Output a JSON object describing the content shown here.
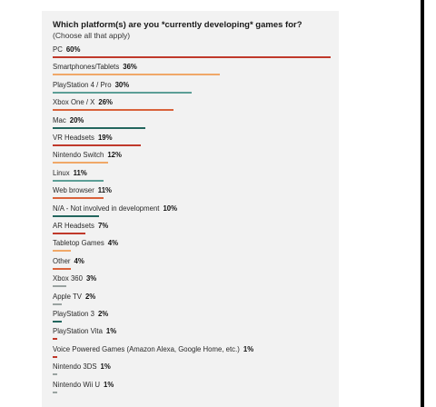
{
  "chart_data": {
    "type": "bar",
    "orientation": "horizontal",
    "title": "Which platform(s) are you *currently developing* games for?",
    "subtitle": "(Choose all that apply)",
    "value_suffix": "%",
    "xlim": [
      0,
      60
    ],
    "grid": false,
    "legend": "none",
    "categories": [
      "PC",
      "Smartphones/Tablets",
      "PlayStation 4 / Pro",
      "Xbox One / X",
      "Mac",
      "VR Headsets",
      "Nintendo Switch",
      "Linux",
      "Web browser",
      "N/A - Not involved in development",
      "AR Headsets",
      "Tabletop Games",
      "Other",
      "Xbox 360",
      "Apple TV",
      "PlayStation 3",
      "PlayStation Vita",
      "Voice Powered Games (Amazon Alexa, Google Home, etc.)",
      "Nintendo 3DS",
      "Nintendo Wii U"
    ],
    "values": [
      60,
      36,
      30,
      26,
      20,
      19,
      12,
      11,
      11,
      10,
      7,
      4,
      4,
      3,
      2,
      2,
      1,
      1,
      1,
      1
    ],
    "value_labels": [
      "60%",
      "36%",
      "30%",
      "26%",
      "20%",
      "19%",
      "12%",
      "11%",
      "11%",
      "10%",
      "7%",
      "4%",
      "4%",
      "3%",
      "2%",
      "2%",
      "1%",
      "1%",
      "1%",
      "1%"
    ],
    "bar_colors": [
      "#c0392b",
      "#f0a868",
      "#5c9e96",
      "#d9623b",
      "#23665e",
      "#c0392b",
      "#f0a868",
      "#5c9e96",
      "#d9623b",
      "#23665e",
      "#c0392b",
      "#f0a868",
      "#d9623b",
      "#9aa3a1",
      "#9aa3a1",
      "#23665e",
      "#c0392b",
      "#c0392b",
      "#9aa3a1",
      "#9aa3a1"
    ]
  }
}
